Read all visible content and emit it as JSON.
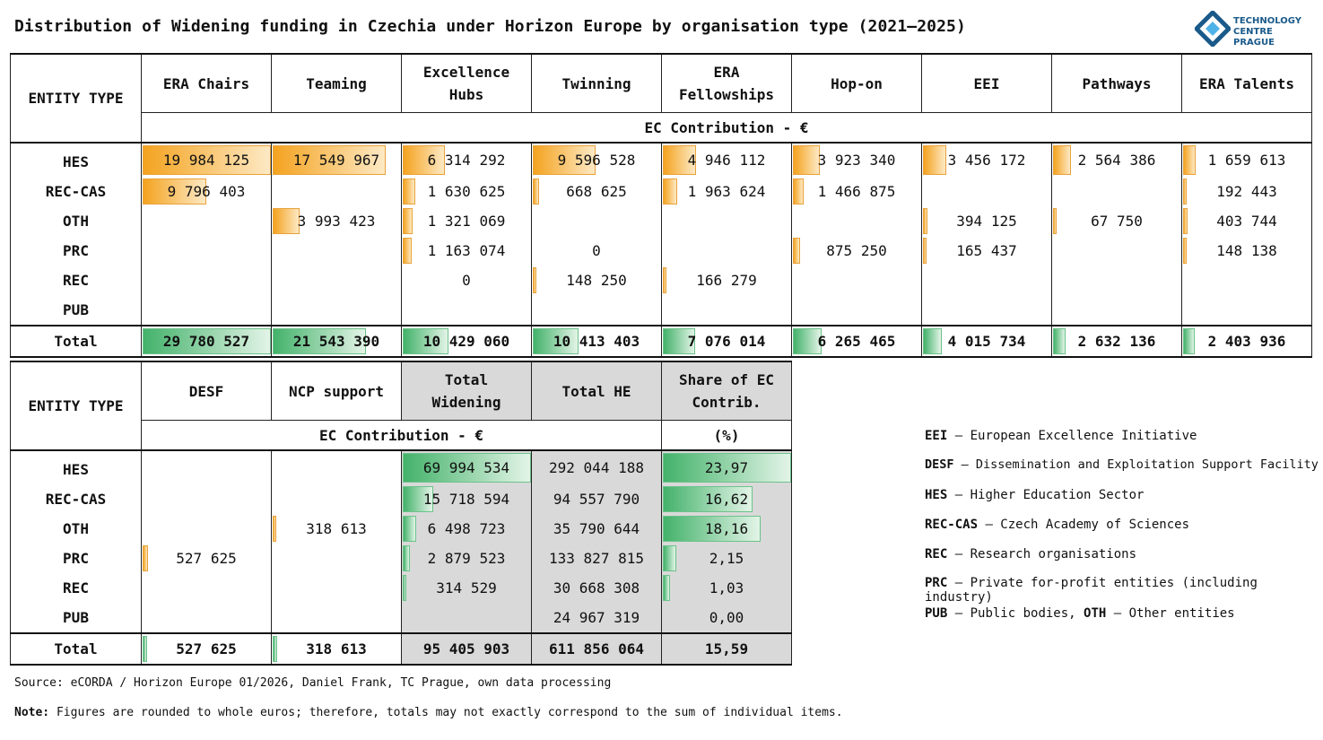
{
  "title": "Distribution of Widening funding in Czechia under Horizon Europe by organisation type (2021–2025)",
  "logo": {
    "line1": "TECHNOLOGY",
    "line2": "CENTRE PRAGUE",
    "icon": "tc-prague-logo-icon"
  },
  "colors": {
    "orange_bar": "#f4a320",
    "green_bar": "#43b26a",
    "grey_col": "#d9d9d9"
  },
  "chart_data": [
    {
      "type": "table",
      "entity_header": "ENTITY TYPE",
      "unit_header": "EC Contribution - €",
      "columns": [
        "ERA Chairs",
        "Teaming",
        "Excellence Hubs",
        "Twinning",
        "ERA Fellowships",
        "Hop-on",
        "EEI",
        "Pathways",
        "ERA Talents"
      ],
      "rows": [
        {
          "entity": "HES",
          "values": [
            "19 984 125",
            "17 549 967",
            "6 314 292",
            "9 596 528",
            "4 946 112",
            "3 923 340",
            "3 456 172",
            "2 564 386",
            "1 659 613"
          ]
        },
        {
          "entity": "REC-CAS",
          "values": [
            "9 796 403",
            "",
            "1 630 625",
            "668 625",
            "1 963 624",
            "1 466 875",
            "",
            "",
            "192 443"
          ]
        },
        {
          "entity": "OTH",
          "values": [
            "",
            "3 993 423",
            "1 321 069",
            "",
            "",
            "",
            "394 125",
            "67 750",
            "403 744"
          ]
        },
        {
          "entity": "PRC",
          "values": [
            "",
            "",
            "1 163 074",
            "0",
            "",
            "875 250",
            "165 437",
            "",
            "148 138"
          ]
        },
        {
          "entity": "REC",
          "values": [
            "",
            "",
            "0",
            "148 250",
            "166 279",
            "",
            "",
            "",
            ""
          ]
        },
        {
          "entity": "PUB",
          "values": [
            "",
            "",
            "",
            "",
            "",
            "",
            "",
            "",
            ""
          ]
        }
      ],
      "total": {
        "entity": "Total",
        "values": [
          "29 780 527",
          "21 543 390",
          "10 429 060",
          "10 413 403",
          "7 076 014",
          "6 265 465",
          "4 015 734",
          "2 632 136",
          "2 403 936"
        ]
      }
    },
    {
      "type": "table",
      "entity_header": "ENTITY TYPE",
      "unit_header": "EC Contribution - €",
      "share_unit": "(%)",
      "columns": [
        "DESF",
        "NCP support",
        "Total Widening",
        "Total HE",
        "Share  of EC Contrib."
      ],
      "rows": [
        {
          "entity": "HES",
          "values": [
            "",
            "",
            "69 994 534",
            "292 044 188",
            "23,97"
          ]
        },
        {
          "entity": "REC-CAS",
          "values": [
            "",
            "",
            "15 718 594",
            "94 557 790",
            "16,62"
          ]
        },
        {
          "entity": "OTH",
          "values": [
            "",
            "318 613",
            "6 498 723",
            "35 790 644",
            "18,16"
          ]
        },
        {
          "entity": "PRC",
          "values": [
            "527 625",
            "",
            "2 879 523",
            "133 827 815",
            "2,15"
          ]
        },
        {
          "entity": "REC",
          "values": [
            "",
            "",
            "314 529",
            "30 668 308",
            "1,03"
          ]
        },
        {
          "entity": "PUB",
          "values": [
            "",
            "",
            "",
            "24 967 319",
            "0,00"
          ]
        }
      ],
      "total": {
        "entity": "Total",
        "values": [
          "527 625",
          "318 613",
          "95 405 903",
          "611 856 064",
          "15,59"
        ]
      }
    }
  ],
  "legend": [
    {
      "abbr": "EEI",
      "text": " – European Excellence Initiative"
    },
    {
      "abbr": "DESF",
      "text": " – Dissemination and Exploitation Support Facility"
    },
    {
      "abbr": "HES",
      "text": " – Higher Education Sector"
    },
    {
      "abbr": "REC-CAS",
      "text": " – Czech Academy of Sciences"
    },
    {
      "abbr": "REC",
      "text": " – Research organisations"
    },
    {
      "abbr": "PRC",
      "text": " – Private for-profit entities (including industry)"
    },
    {
      "abbr": "PUB",
      "text": " – Public bodies, ",
      "abbr2": "OTH",
      "text2": " – Other entities"
    }
  ],
  "source": "Source: eCORDA / Horizon Europe 01/2026, Daniel Frank, TC Prague, own data processing",
  "note_label": "Note:",
  "note_text": " Figures are rounded to whole euros; therefore, totals may not exactly correspond to the sum of individual items."
}
